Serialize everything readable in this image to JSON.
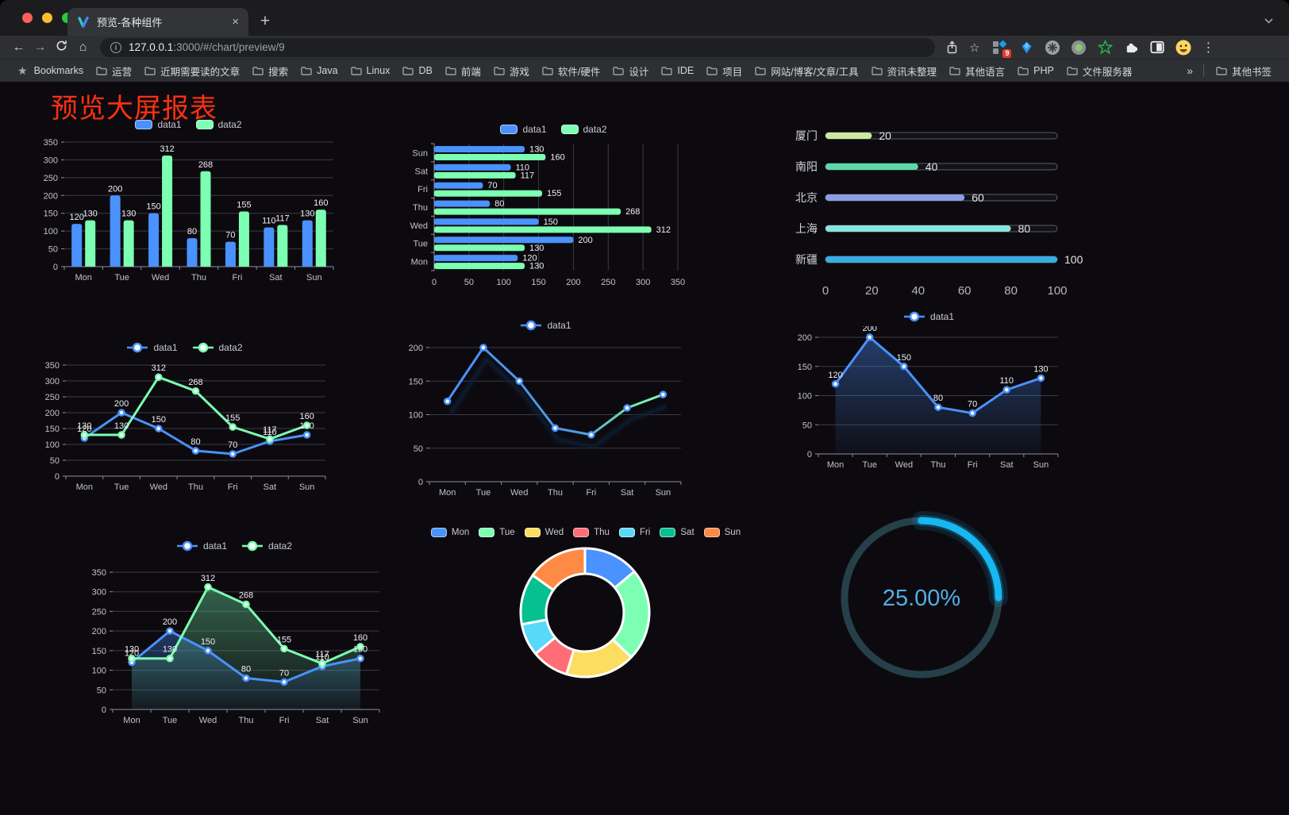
{
  "browser": {
    "tab_title": "预览-各种组件",
    "close_glyph": "×",
    "new_tab_glyph": "+",
    "menu_glyph": "⋮",
    "back_glyph": "←",
    "forward_glyph": "→",
    "home_glyph": "⌂",
    "info_glyph": "i",
    "star_glyph": "☆",
    "url_host": "127.0.0.1",
    "url_rest": ":3000/#/chart/preview/9",
    "ext_badge": "9",
    "bookmarks_label": "Bookmarks",
    "bookmarks_star": "★",
    "bookmarks": [
      "运营",
      "近期需要读的文章",
      "搜索",
      "Java",
      "Linux",
      "DB",
      "前端",
      "游戏",
      "软件/硬件",
      "设计",
      "IDE",
      "项目",
      "网站/博客/文章/工具",
      "资讯未整理",
      "其他语言",
      "PHP",
      "文件服务器"
    ],
    "overflow_glyph": "»",
    "other_bookmarks": "其他书签"
  },
  "page": {
    "title": "预览大屏报表",
    "title_color": "#f93111",
    "background": "#0d0a0f"
  },
  "chart_data": [
    {
      "id": "bar-grouped",
      "type": "bar",
      "el": "c1",
      "categories": [
        "Mon",
        "Tue",
        "Wed",
        "Thu",
        "Fri",
        "Sat",
        "Sun"
      ],
      "series": [
        {
          "name": "data1",
          "color": "#4992ff",
          "values": [
            120,
            200,
            150,
            80,
            70,
            110,
            130
          ]
        },
        {
          "name": "data2",
          "color": "#7cffb2",
          "values": [
            130,
            130,
            312,
            268,
            155,
            117,
            160
          ]
        }
      ],
      "ylim": [
        0,
        350
      ],
      "ytick_step": 50,
      "labels": true,
      "legend_style": "rect",
      "grid": true
    },
    {
      "id": "bar-horizontal",
      "type": "hbar",
      "el": "c2",
      "categories": [
        "Mon",
        "Tue",
        "Wed",
        "Thu",
        "Fri",
        "Sat",
        "Sun"
      ],
      "series": [
        {
          "name": "data1",
          "color": "#4992ff",
          "values": [
            120,
            200,
            150,
            80,
            70,
            110,
            130
          ]
        },
        {
          "name": "data2",
          "color": "#7cffb2",
          "values": [
            130,
            130,
            312,
            268,
            155,
            117,
            160
          ]
        }
      ],
      "xlim": [
        0,
        350
      ],
      "xtick_step": 50,
      "labels": true,
      "legend_style": "rect",
      "grid": true
    },
    {
      "id": "progress-list",
      "type": "progress",
      "el": "c3",
      "max": 100,
      "xticks": [
        0,
        20,
        40,
        60,
        80,
        100
      ],
      "items": [
        {
          "label": "厦门",
          "value": 20,
          "color": "#cde89e"
        },
        {
          "label": "南阳",
          "value": 40,
          "color": "#5fd8a8"
        },
        {
          "label": "北京",
          "value": 60,
          "color": "#8c9de6"
        },
        {
          "label": "上海",
          "value": 80,
          "color": "#8ae4de"
        },
        {
          "label": "新疆",
          "value": 100,
          "color": "#38ade3"
        }
      ]
    },
    {
      "id": "line-two-series",
      "type": "line",
      "el": "c4",
      "categories": [
        "Mon",
        "Tue",
        "Wed",
        "Thu",
        "Fri",
        "Sat",
        "Sun"
      ],
      "series": [
        {
          "name": "data1",
          "color": "#4992ff",
          "values": [
            120,
            200,
            150,
            80,
            70,
            110,
            130
          ]
        },
        {
          "name": "data2",
          "color": "#7cffb2",
          "values": [
            130,
            130,
            312,
            268,
            155,
            117,
            160
          ]
        }
      ],
      "ylim": [
        0,
        350
      ],
      "ytick_step": 50,
      "labels": true,
      "legend_style": "line",
      "grid": true
    },
    {
      "id": "line-gradient",
      "type": "line",
      "el": "c5",
      "categories": [
        "Mon",
        "Tue",
        "Wed",
        "Thu",
        "Fri",
        "Sat",
        "Sun"
      ],
      "series": [
        {
          "name": "data1",
          "color": "#4992ff",
          "line_gradient": [
            "#4992ff",
            "#4a9ae8",
            "#68d9b2",
            "#7cffb2"
          ],
          "values": [
            120,
            200,
            150,
            80,
            70,
            110,
            130
          ]
        }
      ],
      "ylim": [
        0,
        200
      ],
      "ytick_step": 50,
      "labels": false,
      "legend_style": "line",
      "shadow": true,
      "grid": true
    },
    {
      "id": "area-single",
      "type": "line",
      "el": "c6",
      "categories": [
        "Mon",
        "Tue",
        "Wed",
        "Thu",
        "Fri",
        "Sat",
        "Sun"
      ],
      "series": [
        {
          "name": "data1",
          "color": "#4992ff",
          "area": true,
          "area_colors": [
            "rgba(73,146,255,0.38)",
            "rgba(73,146,255,0.04)"
          ],
          "values": [
            120,
            200,
            150,
            80,
            70,
            110,
            130
          ]
        }
      ],
      "ylim": [
        0,
        200
      ],
      "ytick_step": 50,
      "labels": true,
      "legend_style": "line",
      "grid": true
    },
    {
      "id": "area-two-series",
      "type": "line",
      "el": "c7",
      "categories": [
        "Mon",
        "Tue",
        "Wed",
        "Thu",
        "Fri",
        "Sat",
        "Sun"
      ],
      "series": [
        {
          "name": "data1",
          "color": "#4992ff",
          "area": true,
          "area_colors": [
            "rgba(73,146,255,0.35)",
            "rgba(73,146,255,0.04)"
          ],
          "values": [
            120,
            200,
            150,
            80,
            70,
            110,
            130
          ]
        },
        {
          "name": "data2",
          "color": "#7cffb2",
          "area": true,
          "area_colors": [
            "rgba(105,220,160,0.42)",
            "rgba(105,220,160,0.05)"
          ],
          "values": [
            130,
            130,
            312,
            268,
            155,
            117,
            160
          ]
        }
      ],
      "ylim": [
        0,
        350
      ],
      "ytick_step": 50,
      "labels": true,
      "legend_style": "line",
      "grid": true
    },
    {
      "id": "donut-week",
      "type": "donut",
      "el": "c8",
      "categories": [
        "Mon",
        "Tue",
        "Wed",
        "Thu",
        "Fri",
        "Sat",
        "Sun"
      ],
      "values": [
        120,
        200,
        150,
        80,
        70,
        110,
        130
      ],
      "colors": [
        "#4992ff",
        "#7cffb2",
        "#fddd60",
        "#ff6e76",
        "#58d9f9",
        "#05c091",
        "#ff8a45"
      ],
      "border_color": "#ffffff"
    },
    {
      "id": "gauge-percent",
      "type": "gauge",
      "el": "c9",
      "value": 25,
      "max": 100,
      "display": "25.00%",
      "progress_color": "#17b7f2",
      "track_color": "#254049",
      "text_color": "#53aee6"
    }
  ]
}
